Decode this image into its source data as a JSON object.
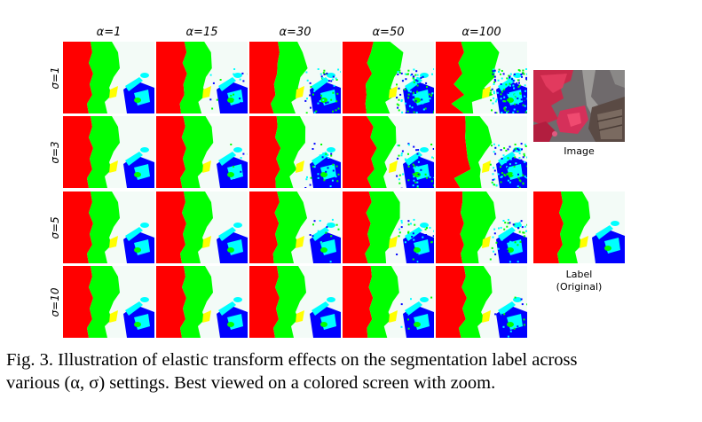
{
  "figure": {
    "column_labels": [
      "α=1",
      "α=15",
      "α=30",
      "α=50",
      "α=100"
    ],
    "row_labels": [
      "σ=1",
      "σ=3",
      "σ=5",
      "σ=10"
    ],
    "image_label": "Image",
    "label_caption_line1": "Label",
    "label_caption_line2": "(Original)",
    "class_colors": {
      "red": "#ff0000",
      "green": "#00ff00",
      "blue": "#0000ff",
      "cyan": "#00ffff",
      "yellow": "#ffff00",
      "background": "#f3fbf7"
    }
  },
  "caption": {
    "line1": "Fig. 3.  Illustration of elastic transform effects on the segmentation label across",
    "line2": "various (α, σ) settings. Best viewed on a colored screen with zoom."
  }
}
